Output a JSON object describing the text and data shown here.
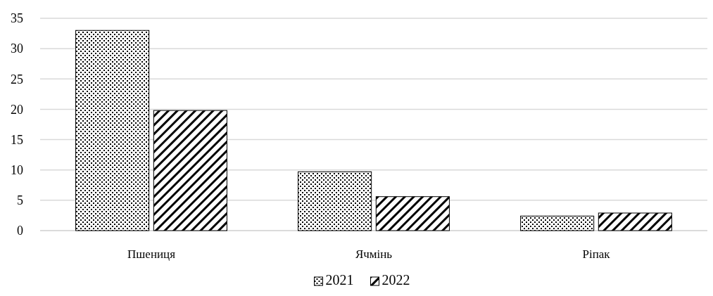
{
  "chart_data": {
    "type": "bar",
    "categories": [
      "Пшениця",
      "Ячмінь",
      "Ріпак"
    ],
    "series": [
      {
        "name": "2021",
        "color": "#000000",
        "values": [
          33.0,
          9.7,
          2.4
        ]
      },
      {
        "name": "2022",
        "color": "#000000",
        "values": [
          19.8,
          5.6,
          2.9
        ]
      }
    ],
    "ylim": [
      0,
      35
    ],
    "yticks": [
      0,
      5,
      10,
      15,
      20,
      25,
      30,
      35
    ],
    "grid": "y",
    "legend": "bottom"
  }
}
